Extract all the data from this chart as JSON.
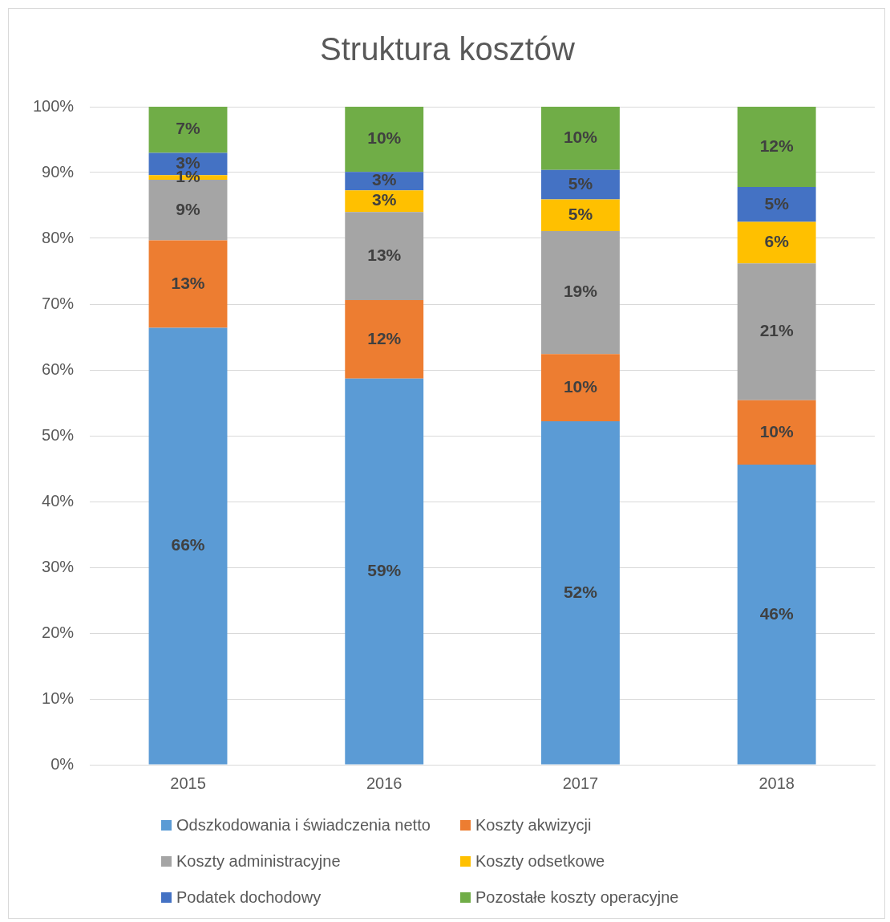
{
  "chart_data": {
    "type": "bar",
    "title": "Struktura kosztów",
    "categories": [
      "2015",
      "2016",
      "2017",
      "2018"
    ],
    "stacked": true,
    "series": [
      {
        "name": "Odszkodowania i świadczenia netto",
        "color": "#5b9bd5",
        "values": [
          66.4,
          58.7,
          52.2,
          45.6
        ],
        "value_labels": [
          "66%",
          "59%",
          "52%",
          "46%"
        ]
      },
      {
        "name": "Koszty akwizycji",
        "color": "#ed7d31",
        "values": [
          13.3,
          11.9,
          10.2,
          9.8
        ],
        "value_labels": [
          "13%",
          "12%",
          "10%",
          "10%"
        ]
      },
      {
        "name": "Koszty administracyjne",
        "color": "#a5a5a5",
        "values": [
          9.2,
          13.4,
          18.7,
          20.8
        ],
        "value_labels": [
          "9%",
          "13%",
          "19%",
          "21%"
        ]
      },
      {
        "name": "Koszty odsetkowe",
        "color": "#ffc000",
        "values": [
          0.7,
          3.3,
          4.8,
          6.3
        ],
        "value_labels": [
          "1%",
          "3%",
          "5%",
          "6%"
        ]
      },
      {
        "name": "Podatek dochodowy",
        "color": "#4472c4",
        "values": [
          3.4,
          2.8,
          4.5,
          5.3
        ],
        "value_labels": [
          "3%",
          "3%",
          "5%",
          "5%"
        ]
      },
      {
        "name": "Pozostałe koszty operacyjne",
        "color": "#70ad47",
        "values": [
          7.0,
          9.9,
          9.6,
          12.2
        ],
        "value_labels": [
          "7%",
          "10%",
          "10%",
          "12%"
        ]
      }
    ],
    "ylim": [
      0,
      100
    ],
    "yticks": [
      {
        "value": 0,
        "label": "0%"
      },
      {
        "value": 10,
        "label": "10%"
      },
      {
        "value": 20,
        "label": "20%"
      },
      {
        "value": 30,
        "label": "30%"
      },
      {
        "value": 40,
        "label": "40%"
      },
      {
        "value": 50,
        "label": "50%"
      },
      {
        "value": 60,
        "label": "60%"
      },
      {
        "value": 70,
        "label": "70%"
      },
      {
        "value": 80,
        "label": "80%"
      },
      {
        "value": 90,
        "label": "90%"
      },
      {
        "value": 100,
        "label": "100%"
      }
    ],
    "grid": "y",
    "legend": "bottom"
  }
}
